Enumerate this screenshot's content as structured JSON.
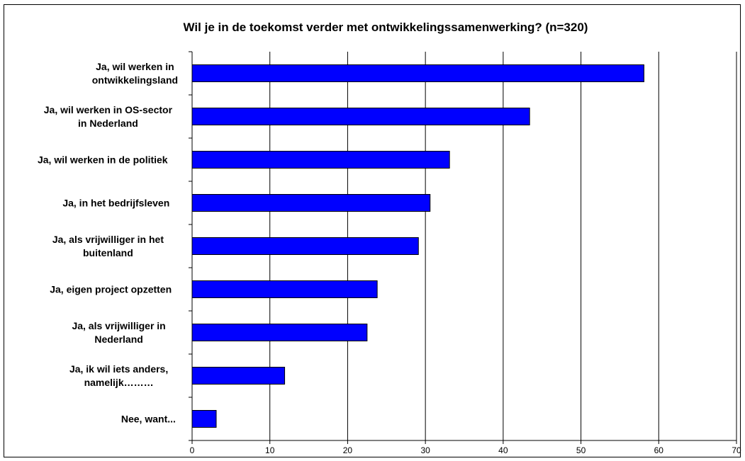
{
  "chart_data": {
    "type": "bar",
    "orientation": "horizontal",
    "title": "Wil je in de toekomst verder met ontwikkelingssamenwerking? (n=320)",
    "xlabel": "",
    "ylabel": "",
    "categories": [
      [
        "Ja, wil werken in",
        "ontwikkelingsland"
      ],
      [
        "Ja, wil werken in OS-sector",
        "in Nederland"
      ],
      [
        "Ja, wil werken in de politiek"
      ],
      [
        "Ja, in het bedrijfsleven"
      ],
      [
        "Ja, als vrijwilliger in het",
        "buitenland"
      ],
      [
        "Ja, eigen project opzetten"
      ],
      [
        "Ja, als vrijwilliger in",
        "Nederland"
      ],
      [
        "Ja, ik wil iets anders,",
        "namelijk………"
      ],
      [
        "Nee, want..."
      ]
    ],
    "values": [
      58.1,
      43.4,
      33.1,
      30.6,
      29.1,
      23.8,
      22.5,
      11.9,
      3.1
    ],
    "xlim": [
      0,
      70
    ],
    "xticks": [
      0,
      10,
      20,
      30,
      40,
      50,
      60,
      70
    ],
    "grid": true,
    "legend": "none",
    "colors": {
      "bar": "#0000ff",
      "bar_edge": "#000000",
      "grid": "#000000"
    }
  }
}
